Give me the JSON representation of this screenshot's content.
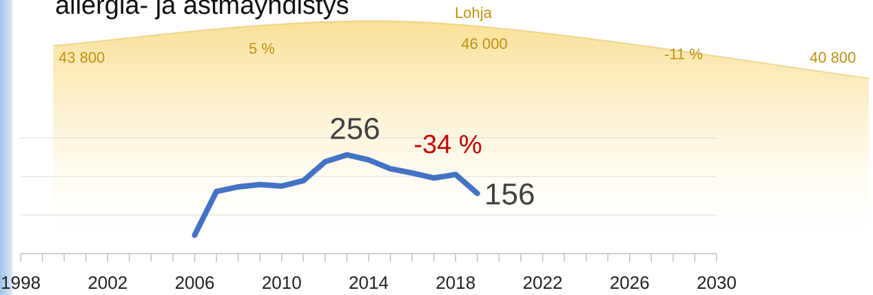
{
  "chart_data": {
    "type": "line",
    "title": "allergia- ja astmayhdistys",
    "xlim": [
      1998,
      2030
    ],
    "xticks": [
      1998,
      2002,
      2006,
      2010,
      2014,
      2018,
      2022,
      2026,
      2030
    ],
    "xminorticks": [
      1998,
      1999,
      2000,
      2001,
      2002,
      2003,
      2004,
      2005,
      2006,
      2007,
      2008,
      2009,
      2010,
      2011,
      2012,
      2013,
      2014,
      2015,
      2016,
      2017,
      2018,
      2019,
      2020,
      2021,
      2022,
      2023,
      2024,
      2025,
      2026,
      2027,
      2028,
      2029,
      2030
    ],
    "ylim": [
      0,
      300
    ],
    "grid_lines": [
      0,
      100,
      200,
      300
    ],
    "y2lim": [
      40000,
      48000
    ],
    "series": [
      {
        "name": "Lohja",
        "color": "#d4a020",
        "axis": "y2",
        "x": [
          1999.5,
          2016,
          2037
        ],
        "values": [
          43800,
          46000,
          40800
        ],
        "value_labels": [
          "43 800",
          "46 000",
          "40 800"
        ]
      },
      {
        "color": "#4472c4",
        "x": [
          2006,
          2007,
          2008,
          2009,
          2010,
          2011,
          2012,
          2013,
          2014,
          2015,
          2016,
          2017,
          2018,
          2019
        ],
        "values": [
          48,
          161,
          173,
          179,
          175,
          189,
          238,
          256,
          243,
          220,
          209,
          196,
          205,
          156
        ]
      }
    ],
    "annotations": [
      "5 %",
      "-11 %",
      "-34 %"
    ]
  }
}
